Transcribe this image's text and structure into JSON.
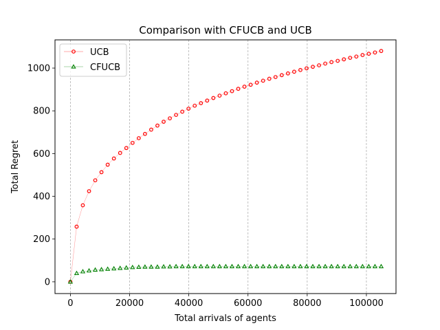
{
  "chart_data": {
    "type": "line",
    "title": "Comparison with CFUCB and UCB",
    "xlabel": "Total arrivals of agents",
    "ylabel": "Total Regret",
    "xlim": [
      -5200,
      110000
    ],
    "ylim": [
      -55,
      1132
    ],
    "xticks": [
      0,
      20000,
      40000,
      60000,
      80000,
      100000
    ],
    "xtick_labels": [
      "0",
      "20000",
      "40000",
      "60000",
      "80000",
      "100000"
    ],
    "yticks": [
      0,
      200,
      400,
      600,
      800,
      1000
    ],
    "ytick_labels": [
      "0",
      "200",
      "400",
      "600",
      "800",
      "1000"
    ],
    "grid": "vertical dashed",
    "legend_position": "top-left",
    "x": [
      0,
      2100,
      4200,
      6300,
      8400,
      10500,
      12600,
      14700,
      16800,
      18900,
      21000,
      23100,
      25200,
      27300,
      29400,
      31500,
      33600,
      35700,
      37800,
      39900,
      42000,
      44100,
      46200,
      48300,
      50400,
      52500,
      54600,
      56700,
      58800,
      60900,
      63000,
      65100,
      67200,
      69300,
      71400,
      73500,
      75600,
      77700,
      79800,
      81900,
      84000,
      86100,
      88200,
      90300,
      92400,
      94500,
      96600,
      98700,
      100800,
      102900,
      105000
    ],
    "series": [
      {
        "name": "UCB",
        "color": "#ff0000",
        "marker": "circle",
        "values": [
          0,
          258,
          358,
          424,
          475,
          513,
          548,
          577,
          603,
          626,
          650,
          672,
          692,
          712,
          731,
          749,
          765,
          781,
          796,
          810,
          824,
          836,
          848,
          860,
          871,
          882,
          892,
          903,
          913,
          922,
          932,
          941,
          950,
          958,
          967,
          975,
          983,
          991,
          999,
          1006,
          1013,
          1021,
          1028,
          1034,
          1041,
          1048,
          1054,
          1061,
          1067,
          1073,
          1080
        ]
      },
      {
        "name": "CFUCB",
        "color": "#008000",
        "marker": "triangle",
        "values": [
          0,
          40,
          48,
          52,
          56,
          58,
          60,
          62,
          64,
          66,
          68,
          69,
          70,
          70,
          70,
          71,
          71,
          72,
          72,
          72,
          72,
          72,
          72,
          72,
          72,
          72,
          72,
          72,
          72,
          72,
          72,
          72,
          72,
          72,
          72,
          72,
          72,
          72,
          72,
          72,
          72,
          72,
          72,
          72,
          72,
          72,
          72,
          72,
          72,
          72,
          72
        ]
      }
    ]
  }
}
